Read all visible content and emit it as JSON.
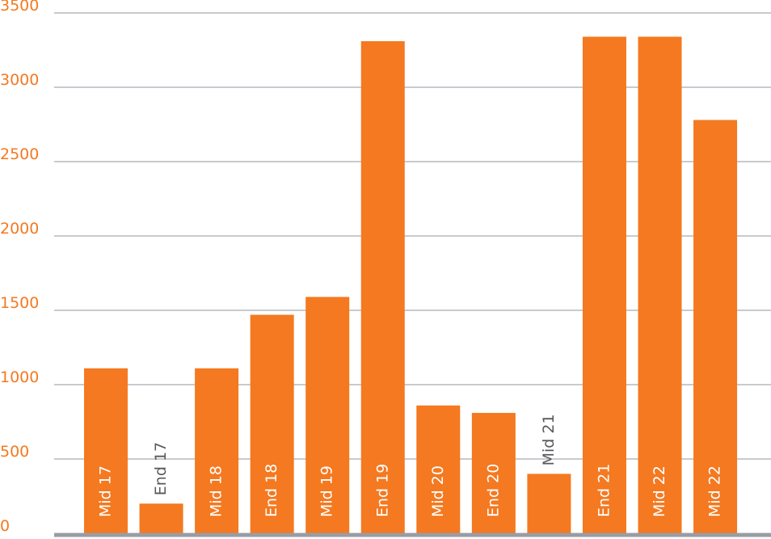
{
  "chart_data": {
    "type": "bar",
    "title": "",
    "xlabel": "",
    "ylabel": "",
    "categories": [
      "Mid 17",
      "End 17",
      "Mid 18",
      "End 18",
      "Mid 19",
      "End 19",
      "Mid 20",
      "End 20",
      "Mid 21",
      "End 21",
      "Mid 22",
      "Mid 22"
    ],
    "values": [
      1110,
      200,
      1110,
      1470,
      1590,
      3310,
      860,
      810,
      400,
      3340,
      3340,
      2780
    ],
    "ylim": [
      0,
      3500
    ],
    "yticks": [
      "0",
      "500",
      "1000",
      "1500",
      "2000",
      "2500",
      "3000",
      "3500"
    ],
    "grid": true,
    "legend": "none"
  },
  "colors": {
    "bar": "#f47920",
    "tick_text": "#f47920",
    "grid": "#a8aab0",
    "baseline": "#9a9ca3",
    "label_inside": "#ffffff",
    "label_outside": "#58595b"
  }
}
